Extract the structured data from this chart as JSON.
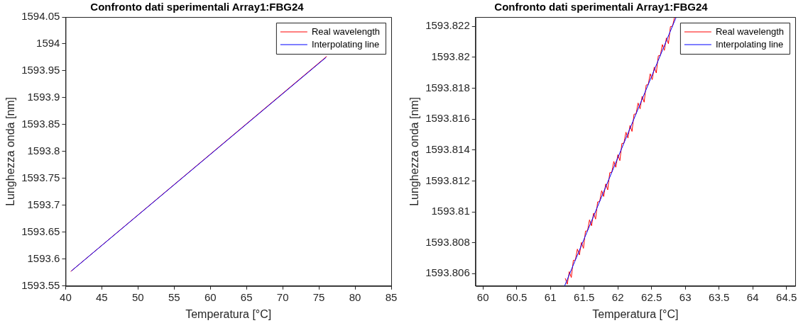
{
  "chart_data": [
    {
      "type": "line",
      "title": "Confronto dati sperimentali Array1:FBG24",
      "xlabel": "Temperatura [°C]",
      "ylabel": "Lunghezza onda [nm]",
      "xlim": [
        40,
        85
      ],
      "xticks": [
        40,
        45,
        50,
        55,
        60,
        65,
        70,
        75,
        80,
        85
      ],
      "ylim": [
        1593.55,
        1594.05
      ],
      "yticks": [
        1593.55,
        1593.6,
        1593.65,
        1593.7,
        1593.75,
        1593.8,
        1593.85,
        1593.9,
        1593.95,
        1594,
        1594.05
      ],
      "grid": false,
      "legend": "top right",
      "marker": "none",
      "line_style": "solid",
      "series": [
        {
          "name": "Real wavelength",
          "color": "#ff0000",
          "x": [
            40.7,
            76.1
          ],
          "values": [
            1593.577,
            1593.977
          ]
        },
        {
          "name": "Interpolating line",
          "color": "#0000ff",
          "x": [
            40.8,
            76.0
          ],
          "values": [
            1593.578,
            1593.975
          ]
        }
      ]
    },
    {
      "type": "line",
      "title": "Confronto dati sperimentali Array1:FBG24",
      "xlabel": "Temperatura [°C]",
      "ylabel": "Lunghezza onda [nm]",
      "xlim": [
        59.89,
        64.63
      ],
      "xticks": [
        60,
        60.5,
        61,
        61.5,
        62,
        62.5,
        63,
        63.5,
        64,
        64.5
      ],
      "ylim": [
        1593.8052,
        1593.8226
      ],
      "yticks": [
        1593.806,
        1593.808,
        1593.81,
        1593.812,
        1593.814,
        1593.816,
        1593.818,
        1593.82,
        1593.822
      ],
      "grid": false,
      "legend": "top right",
      "marker": "none",
      "line_style": "solid",
      "series": [
        {
          "name": "Real wavelength",
          "color": "#ff0000",
          "x": [
            61.22,
            61.25,
            61.28,
            61.31,
            61.34,
            61.37,
            61.4,
            61.43,
            61.46,
            61.49,
            61.52,
            61.55,
            61.58,
            61.61,
            61.64,
            61.67,
            61.7,
            61.73,
            61.76,
            61.79,
            61.82,
            61.85,
            61.88,
            61.91,
            61.94,
            61.97,
            62.0,
            62.03,
            62.06,
            62.09,
            62.12,
            62.15,
            62.18,
            62.21,
            62.24,
            62.27,
            62.3,
            62.33,
            62.36,
            62.39,
            62.42,
            62.45,
            62.48,
            62.51,
            62.54,
            62.57,
            62.6,
            62.63,
            62.66,
            62.69,
            62.72,
            62.75,
            62.78,
            62.81,
            62.84
          ],
          "values": [
            1593.8057,
            1593.80532,
            1593.80613,
            1593.80575,
            1593.80686,
            1593.80688,
            1593.80759,
            1593.80721,
            1593.80802,
            1593.80764,
            1593.80875,
            1593.80877,
            1593.80948,
            1593.8091,
            1593.80991,
            1593.80953,
            1593.81064,
            1593.81066,
            1593.81137,
            1593.81099,
            1593.8118,
            1593.81142,
            1593.81253,
            1593.81255,
            1593.81326,
            1593.81288,
            1593.81369,
            1593.81331,
            1593.81442,
            1593.81444,
            1593.81515,
            1593.81477,
            1593.81558,
            1593.8152,
            1593.81631,
            1593.81633,
            1593.81704,
            1593.81666,
            1593.81747,
            1593.81709,
            1593.8182,
            1593.81822,
            1593.81893,
            1593.81855,
            1593.81936,
            1593.81898,
            1593.82009,
            1593.82011,
            1593.82082,
            1593.82044,
            1593.82125,
            1593.82087,
            1593.82198,
            1593.822,
            1593.82256
          ]
        },
        {
          "name": "Interpolating line",
          "color": "#0000ff",
          "x": [
            61.21,
            62.866
          ],
          "values": [
            1593.8052,
            1593.8226
          ]
        }
      ]
    }
  ]
}
